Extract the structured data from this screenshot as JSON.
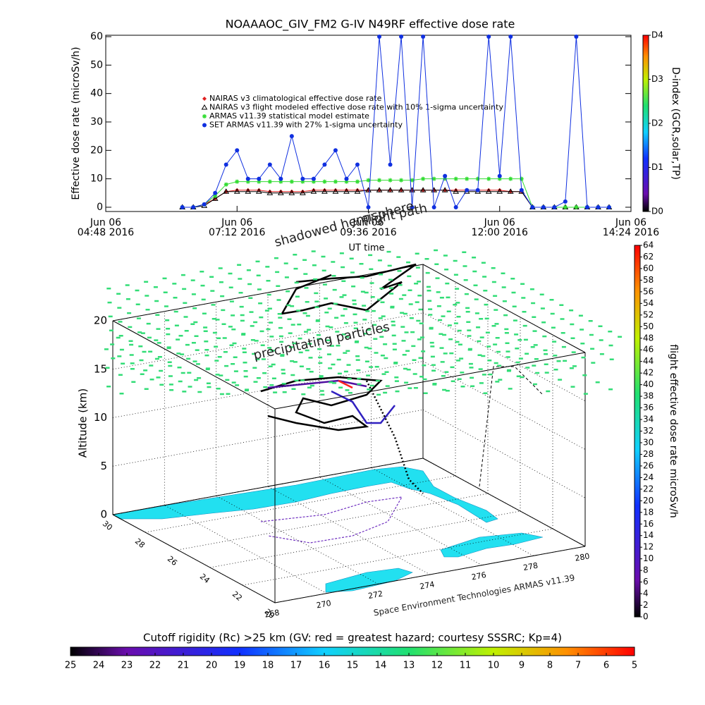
{
  "chart_data": [
    {
      "type": "line",
      "title": "NOAAAOC_GIV_FM2 G-IV   N49RF  effective dose rate",
      "ylabel": "Effective dose rate (microSv/h)",
      "xlabel": "UT time",
      "xlim": [
        "2016-06-06T04:48",
        "2016-06-06T14:24"
      ],
      "xticks": [
        {
          "value": "2016-06-06T04:48",
          "label": [
            "Jun 06",
            "04:48 2016"
          ]
        },
        {
          "value": "2016-06-06T07:12",
          "label": [
            "Jun 06",
            "07:12 2016"
          ]
        },
        {
          "value": "2016-06-06T09:36",
          "label": [
            "Jun 06",
            "09:36 2016"
          ]
        },
        {
          "value": "2016-06-06T12:00",
          "label": [
            "Jun 06",
            "12:00 2016"
          ]
        },
        {
          "value": "2016-06-06T14:24",
          "label": [
            "Jun 06",
            "14:24 2016"
          ]
        }
      ],
      "ylim": [
        -1.5,
        60.5
      ],
      "yticks": [
        0,
        10,
        20,
        30,
        40,
        50,
        60
      ],
      "x": [
        "2016-06-06T06:12",
        "2016-06-06T06:24",
        "2016-06-06T06:36",
        "2016-06-06T06:48",
        "2016-06-06T07:00",
        "2016-06-06T07:12",
        "2016-06-06T07:24",
        "2016-06-06T07:36",
        "2016-06-06T07:48",
        "2016-06-06T08:00",
        "2016-06-06T08:12",
        "2016-06-06T08:24",
        "2016-06-06T08:36",
        "2016-06-06T08:48",
        "2016-06-06T09:00",
        "2016-06-06T09:12",
        "2016-06-06T09:24",
        "2016-06-06T09:36",
        "2016-06-06T09:48",
        "2016-06-06T10:00",
        "2016-06-06T10:12",
        "2016-06-06T10:24",
        "2016-06-06T10:36",
        "2016-06-06T10:48",
        "2016-06-06T11:00",
        "2016-06-06T11:12",
        "2016-06-06T11:24",
        "2016-06-06T11:36",
        "2016-06-06T11:48",
        "2016-06-06T12:00",
        "2016-06-06T12:12",
        "2016-06-06T12:24",
        "2016-06-06T12:36",
        "2016-06-06T12:48",
        "2016-06-06T13:00",
        "2016-06-06T13:12",
        "2016-06-06T13:24",
        "2016-06-06T13:36",
        "2016-06-06T13:48",
        "2016-06-06T14:00"
      ],
      "series": [
        {
          "name": "NAIRAS v3 climatological effective dose rate",
          "color": "#e02020",
          "marker": "diamond",
          "values": [
            0,
            0,
            1,
            3,
            5.5,
            6,
            6,
            6,
            5.5,
            5.5,
            5.5,
            5.5,
            6,
            6,
            6,
            6,
            6,
            6,
            6,
            6,
            6,
            6,
            6,
            6,
            6,
            6,
            6,
            6,
            6,
            6,
            5.5,
            5.5,
            0,
            0,
            0,
            0,
            0,
            0,
            0,
            0
          ]
        },
        {
          "name": "NAIRAS v3 flight modeled effective dose rate with 10% 1-sigma uncertainty",
          "color": "#000000",
          "marker": "triangle",
          "values": [
            0,
            0,
            0.5,
            3,
            5.5,
            5.5,
            5.5,
            5.5,
            5,
            5,
            5,
            5,
            5.5,
            5.5,
            5.5,
            5.5,
            5.5,
            6,
            6,
            6,
            6,
            6,
            6,
            6,
            6,
            5.5,
            5.5,
            5.5,
            5.5,
            5.5,
            5.5,
            5.5,
            0,
            0,
            0,
            0,
            0,
            0,
            0,
            0
          ]
        },
        {
          "name": "ARMAS v11.39 statistical model estimate",
          "color": "#33dd33",
          "marker": "asterisk",
          "values": [
            0,
            0,
            1,
            4,
            8,
            9,
            9,
            9,
            9,
            9,
            9,
            9,
            9,
            9,
            9,
            9,
            9,
            9.5,
            9.5,
            9.5,
            9.5,
            9.5,
            10,
            10,
            10,
            10,
            10,
            10,
            10,
            10,
            10,
            10,
            0,
            0,
            0,
            0,
            0,
            0,
            0,
            0
          ]
        },
        {
          "name": "SET ARMAS v11.39 with 27% 1-sigma uncertainty",
          "color": "#1030e0",
          "marker": "circle",
          "values": [
            0,
            0,
            1,
            5,
            15,
            20,
            10,
            10,
            15,
            10,
            25,
            10,
            10,
            15,
            20,
            10,
            15,
            0,
            60,
            15,
            60,
            0,
            60,
            0,
            11,
            0,
            6,
            6,
            60,
            11,
            60,
            6,
            0,
            0,
            0,
            2,
            60,
            0,
            0,
            0
          ]
        }
      ]
    },
    {
      "type": "colorbar",
      "ylabel": "D-index (GCR,solar,TP)",
      "ylim": [
        0,
        4
      ],
      "yticks": [
        {
          "value": 0,
          "label": "D0"
        },
        {
          "value": 1,
          "label": "D1"
        },
        {
          "value": 2,
          "label": "D2"
        },
        {
          "value": 3,
          "label": "D3"
        },
        {
          "value": 4,
          "label": "D4"
        }
      ]
    },
    {
      "type": "box3d",
      "zlabel": "Altitude (km)",
      "zlim": [
        0,
        20
      ],
      "zticks": [
        0,
        5,
        10,
        15,
        20
      ],
      "ylim": [
        20,
        30
      ],
      "yticks": [
        20,
        22,
        24,
        26,
        28,
        30
      ],
      "xlim": [
        268,
        280
      ],
      "xticks": [
        268,
        270,
        272,
        274,
        276,
        278,
        280
      ],
      "annotations": [
        "shadowed hemisphere",
        "flight path",
        "precipitating particles",
        "Space Environment Technologies ARMAS v11.39"
      ]
    },
    {
      "type": "colorbar",
      "ylabel": "flight effective dose rate microSv/h",
      "ylim": [
        0,
        64
      ],
      "yticks": [
        0,
        2,
        4,
        6,
        8,
        10,
        12,
        14,
        16,
        18,
        20,
        22,
        24,
        26,
        28,
        30,
        32,
        34,
        36,
        38,
        40,
        42,
        44,
        46,
        48,
        50,
        52,
        54,
        56,
        58,
        60,
        62,
        64
      ]
    },
    {
      "type": "colorbar",
      "xlabel": "Cutoff rigidity (Rc) >25 km (GV: red = greatest hazard; courtesy SSSRC; Kp=4)",
      "xlim": [
        25,
        5
      ],
      "xticks": [
        25,
        24,
        23,
        22,
        21,
        20,
        19,
        18,
        17,
        16,
        15,
        14,
        13,
        12,
        11,
        10,
        9,
        8,
        7,
        6,
        5
      ]
    }
  ]
}
